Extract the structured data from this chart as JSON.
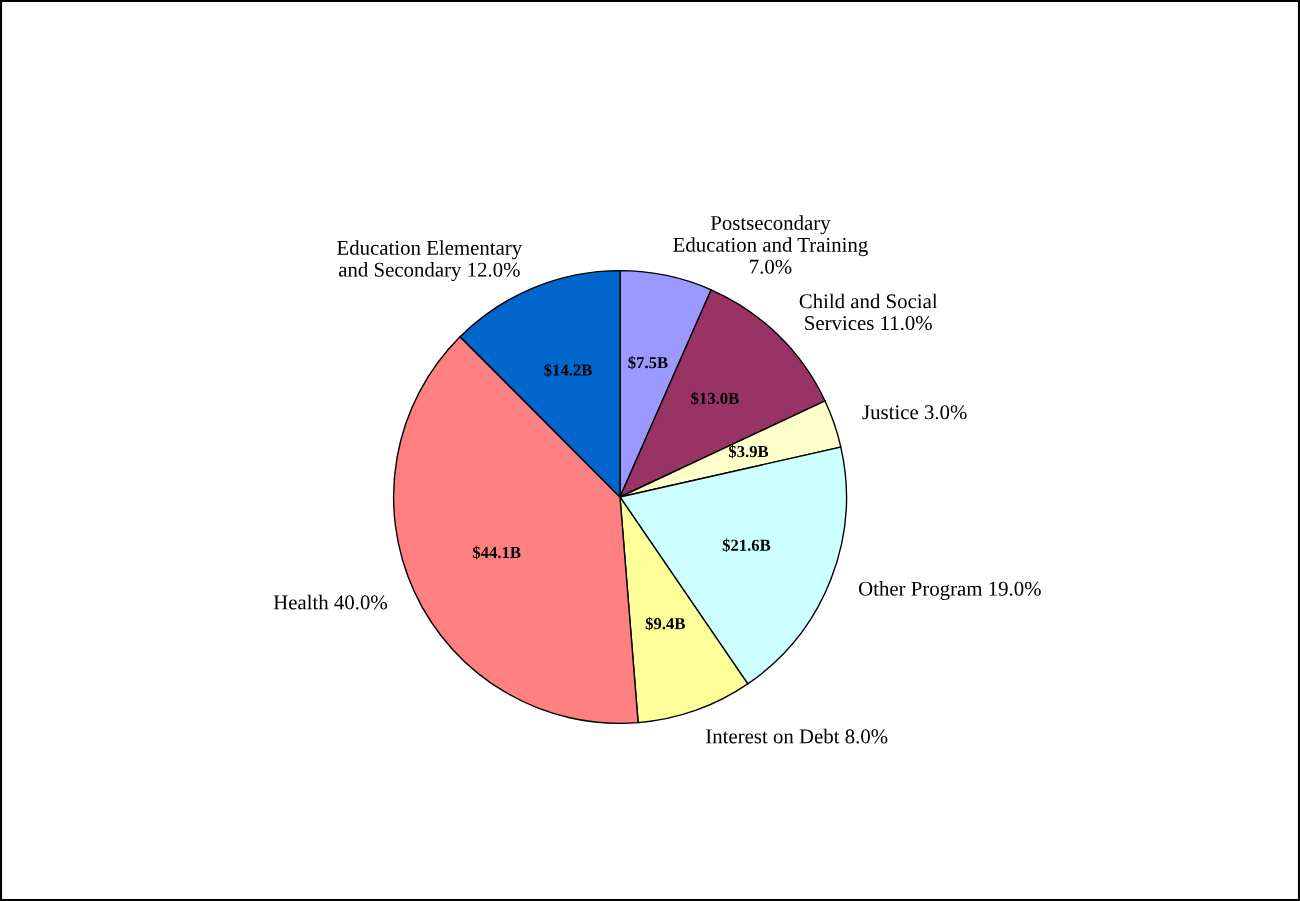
{
  "chart_data": {
    "type": "pie",
    "categories": [
      "Postsecondary\nEducation and Training\n7.0%",
      "Child and Social\nServices 11.0%",
      "Justice 3.0%",
      "Other Program 19.0%",
      "Interest on Debt 8.0%",
      "Health 40.0%",
      "Education Elementary\nand Secondary 12.0%"
    ],
    "values": [
      7.5,
      13.0,
      3.9,
      21.6,
      9.4,
      44.1,
      14.2
    ],
    "value_labels": [
      "$7.5B",
      "$13.0B",
      "$3.9B",
      "$21.6B",
      "$9.4B",
      "$44.1B",
      "$14.2B"
    ],
    "colors": [
      "#9999ff",
      "#993366",
      "#ffffcc",
      "#ccffff",
      "#ffff99",
      "#ff8080",
      "#0066cc"
    ],
    "legend": false
  }
}
